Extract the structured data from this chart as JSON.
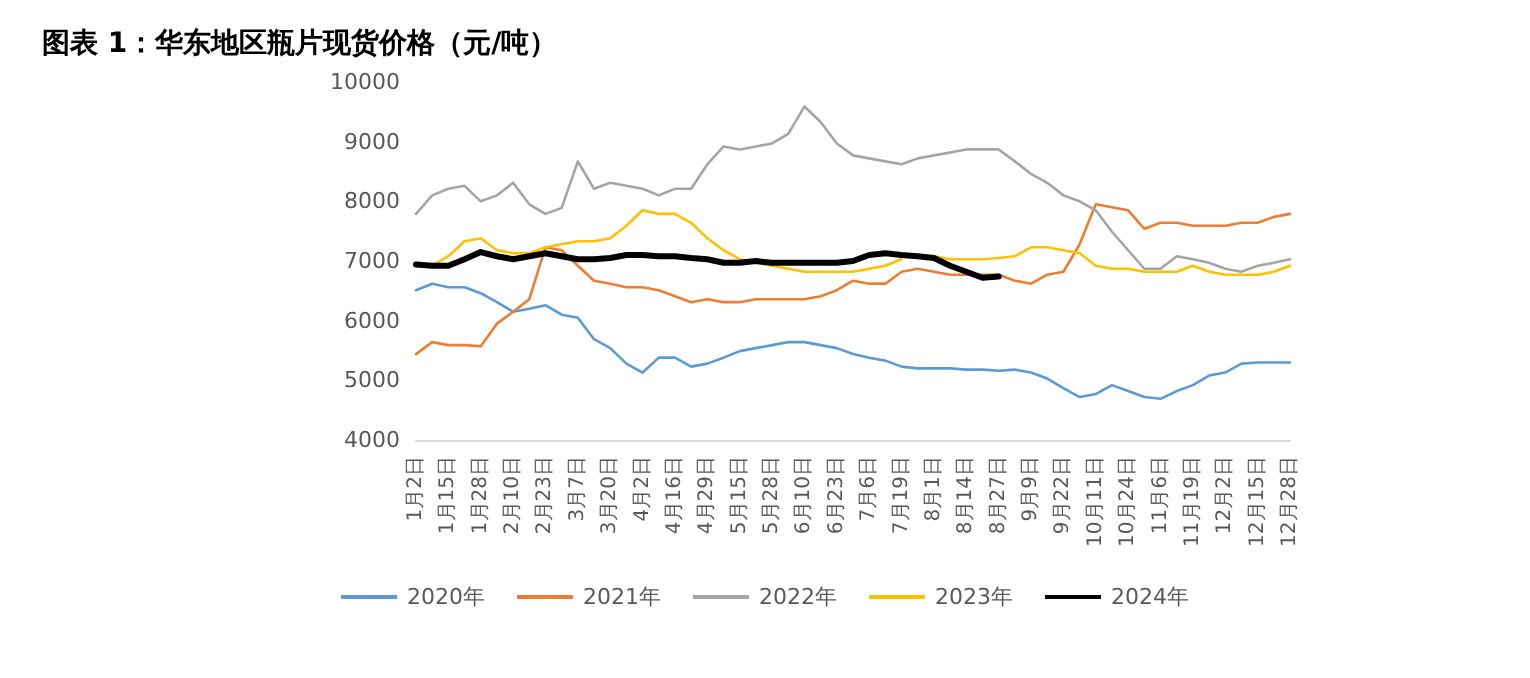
{
  "chart_data": {
    "type": "line",
    "title": "图表 1：华东地区瓶片现货价格（元/吨）",
    "categories": [
      "1月2日",
      null,
      "1月15日",
      null,
      "1月28日",
      null,
      "2月10日",
      null,
      "2月23日",
      null,
      "3月7日",
      null,
      "3月20日",
      null,
      "4月2日",
      null,
      "4月16日",
      null,
      "4月29日",
      null,
      "5月15日",
      null,
      "5月28日",
      null,
      "6月10日",
      null,
      "6月23日",
      null,
      "7月6日",
      null,
      "7月19日",
      null,
      "8月1日",
      null,
      "8月14日",
      null,
      "8月27日",
      null,
      "9月9日",
      null,
      "9月22日",
      null,
      "10月11日",
      null,
      "10月24日",
      null,
      "11月6日",
      null,
      "11月19日",
      null,
      "12月2日",
      null,
      "12月15日",
      null,
      "12月28日"
    ],
    "series": [
      {
        "name": "2020年",
        "color": "#5b9bd5",
        "values": [
          6510,
          6620,
          6560,
          6560,
          6460,
          6310,
          6150,
          6200,
          6260,
          6100,
          6050,
          5690,
          5540,
          5280,
          5130,
          5380,
          5380,
          5230,
          5280,
          5380,
          5490,
          5540,
          5590,
          5640,
          5640,
          5590,
          5540,
          5440,
          5380,
          5330,
          5230,
          5200,
          5200,
          5200,
          5180,
          5180,
          5160,
          5180,
          5130,
          5030,
          4870,
          4720,
          4770,
          4920,
          4820,
          4720,
          4690,
          4820,
          4920,
          5080,
          5130,
          5280,
          5300,
          5300,
          5300
        ]
      },
      {
        "name": "2021年",
        "color": "#ed7d31",
        "values": [
          5440,
          5640,
          5590,
          5590,
          5570,
          5950,
          6150,
          6360,
          7230,
          7180,
          6920,
          6670,
          6620,
          6560,
          6560,
          6510,
          6410,
          6310,
          6360,
          6310,
          6310,
          6360,
          6360,
          6360,
          6360,
          6410,
          6510,
          6670,
          6620,
          6620,
          6820,
          6870,
          6820,
          6770,
          6770,
          6770,
          6770,
          6670,
          6620,
          6770,
          6820,
          7280,
          7950,
          7900,
          7850,
          7540,
          7640,
          7640,
          7590,
          7590,
          7590,
          7640,
          7640,
          7740,
          7790
        ]
      },
      {
        "name": "2022年",
        "color": "#a5a5a5",
        "values": [
          7790,
          8100,
          8210,
          8260,
          8000,
          8100,
          8310,
          7950,
          7790,
          7890,
          8670,
          8210,
          8310,
          8260,
          8210,
          8100,
          8210,
          8210,
          8620,
          8920,
          8870,
          8920,
          8970,
          9130,
          9590,
          9330,
          8970,
          8770,
          8720,
          8670,
          8620,
          8720,
          8770,
          8820,
          8870,
          8870,
          8870,
          8670,
          8460,
          8310,
          8100,
          8000,
          7850,
          7490,
          7180,
          6870,
          6870,
          7080,
          7030,
          6970,
          6870,
          6820,
          6920,
          6970,
          7030
        ]
      },
      {
        "name": "2023年",
        "color": "#ffc000",
        "values": [
          6970,
          6920,
          7080,
          7330,
          7380,
          7180,
          7130,
          7130,
          7230,
          7280,
          7330,
          7330,
          7380,
          7590,
          7850,
          7790,
          7790,
          7640,
          7380,
          7180,
          7030,
          6970,
          6920,
          6870,
          6820,
          6820,
          6820,
          6820,
          6870,
          6920,
          7030,
          null,
          7080,
          7030,
          7030,
          7030,
          7050,
          7080,
          7230,
          7230,
          7180,
          7130,
          6920,
          6870,
          6870,
          6820,
          6820,
          6820,
          6920,
          6820,
          6770,
          6770,
          6770,
          6820,
          6920
        ]
      },
      {
        "name": "2024年",
        "color": "#000000",
        "values": [
          6940,
          6920,
          6920,
          7030,
          7150,
          7080,
          7030,
          7080,
          7130,
          7080,
          7030,
          7030,
          7050,
          7100,
          7100,
          7080,
          7080,
          7050,
          7030,
          6970,
          6970,
          7000,
          6970,
          6970,
          6970,
          6970,
          6970,
          7000,
          7100,
          7130,
          7100,
          7080,
          7050,
          6920,
          6820,
          6720,
          6740,
          null,
          null,
          null,
          null,
          null,
          null,
          null,
          null,
          null,
          null,
          null,
          null,
          null,
          null,
          null,
          null,
          null,
          null
        ]
      }
    ],
    "ylim": [
      4000,
      10000
    ],
    "yticks": [
      4000,
      5000,
      6000,
      7000,
      8000,
      9000,
      10000
    ],
    "grid": false,
    "legend": "bottom",
    "marker": "none",
    "line_style": "solid"
  }
}
